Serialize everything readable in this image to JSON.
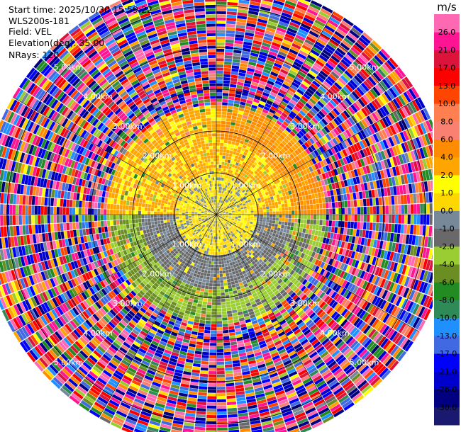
{
  "header": {
    "start_time": "Start time: 2025/10/30 15:59:22",
    "instrument": "WLS200s-181",
    "field": "Field: VEL",
    "elevation": "Elevation(deg): 35.00",
    "nrays": "NRays: 120"
  },
  "colorbar": {
    "unit": "m/s",
    "levels": [
      "-30.0",
      "-26.0",
      "-21.0",
      "-17.0",
      "-13.0",
      "-10.0",
      "-8.0",
      "-6.0",
      "-4.0",
      "-2.0",
      "-1.0",
      "0.0",
      "1.0",
      "2.0",
      "4.0",
      "6.0",
      "8.0",
      "10.0",
      "13.0",
      "17.0",
      "21.0",
      "26.0"
    ],
    "colors": [
      "#191970",
      "#000080",
      "#0000cd",
      "#0000ff",
      "#4169e1",
      "#1e90ff",
      "#2e8b57",
      "#228b22",
      "#6b8e23",
      "#9acd32",
      "#696969",
      "#778899",
      "#ffd700",
      "#ffff00",
      "#ffa500",
      "#ff8c00",
      "#fa8072",
      "#ff7f50",
      "#ff4500",
      "#ff0000",
      "#dc143c",
      "#ff1493",
      "#ff69b4"
    ]
  },
  "chart_data": {
    "type": "ppi",
    "field": "VEL",
    "units": "m/s",
    "elevation_deg": 35.0,
    "nrays": 120,
    "range_rings_km": [
      1.0,
      2.0,
      3.0,
      4.0,
      5.0
    ],
    "ring_labels": [
      "1.00km",
      "2.00km",
      "3.00km",
      "4.00km",
      "5.00km"
    ],
    "max_range_km": 5.6,
    "regions": [
      {
        "range_km": [
          0.0,
          1.0
        ],
        "description": "near-zero velocities",
        "dominant": [
          0.0,
          -1.0,
          1.0
        ]
      },
      {
        "range_km": [
          1.0,
          1.8
        ],
        "sector": "north",
        "dominant": [
          2.0,
          1.0
        ]
      },
      {
        "range_km": [
          1.0,
          1.8
        ],
        "sector": "south",
        "dominant": [
          -1.0,
          -2.0
        ]
      },
      {
        "range_km": [
          1.8,
          2.6
        ],
        "sector": "north",
        "dominant": [
          4.0,
          6.0
        ]
      },
      {
        "range_km": [
          1.8,
          2.6
        ],
        "sector": "south",
        "dominant": [
          -4.0,
          -6.0
        ]
      },
      {
        "range_km": [
          2.6,
          5.6
        ],
        "description": "noise",
        "dominant": "mixed"
      }
    ]
  }
}
